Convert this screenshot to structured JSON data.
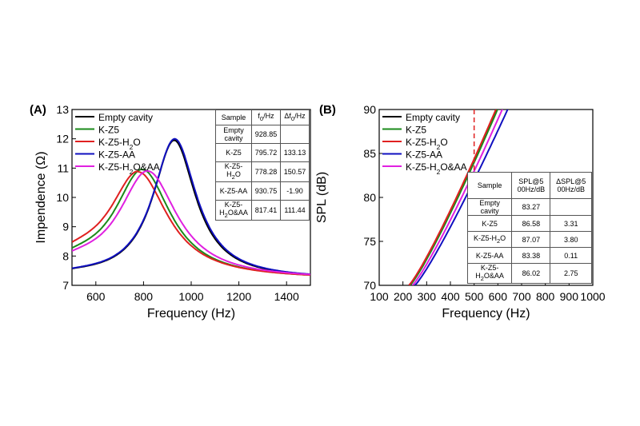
{
  "chart_data": [
    {
      "panel_label": "(A)",
      "type": "line",
      "xlabel": "Frequency (Hz)",
      "ylabel": "Impendence (Ω)",
      "xlim": [
        500,
        1500
      ],
      "ylim": [
        7,
        13
      ],
      "xticks": [
        600,
        800,
        1000,
        1200,
        1400
      ],
      "yticks": [
        7,
        8,
        9,
        10,
        11,
        12,
        13
      ],
      "legend_position": "top-left",
      "series": [
        {
          "name": "Empty cavity",
          "label_parts": [
            "Empty cavity"
          ],
          "color": "#000000",
          "f0": 928.85,
          "peak": 11.95,
          "baseline": 7.2,
          "gamma": 110,
          "ylow": 7.28
        },
        {
          "name": "K-Z5",
          "label_parts": [
            "K-Z5"
          ],
          "color": "#1a8a1a",
          "f0": 795.72,
          "peak": 10.95,
          "baseline": 7.2,
          "gamma": 145,
          "ylow": 7.55
        },
        {
          "name": "K-Z5-H2O",
          "label_parts": [
            "K-Z5-H",
            "2",
            "O"
          ],
          "color": "#e02020",
          "f0": 778.28,
          "peak": 10.87,
          "baseline": 7.2,
          "gamma": 150,
          "ylow": 7.65
        },
        {
          "name": "K-Z5-AA",
          "label_parts": [
            "K-Z5-AA"
          ],
          "color": "#1010c0",
          "f0": 930.75,
          "peak": 12.0,
          "baseline": 7.2,
          "gamma": 112,
          "ylow": 7.28
        },
        {
          "name": "K-Z5-H2O&AA",
          "label_parts": [
            "K-Z5-H",
            "2",
            "O&AA"
          ],
          "color": "#e020e0",
          "f0": 817.41,
          "peak": 10.9,
          "baseline": 7.2,
          "gamma": 150,
          "ylow": 7.5
        }
      ],
      "table": {
        "headers": [
          "Sample",
          "f0/Hz",
          "Δf0/Hz"
        ],
        "rows": [
          [
            "Empty cavity",
            "928.85",
            ""
          ],
          [
            "K-Z5",
            "795.72",
            "133.13"
          ],
          [
            "K-Z5-H2O",
            "778.28",
            "150.57"
          ],
          [
            "K-Z5-AA",
            "930.75",
            "-1.90"
          ],
          [
            "K-Z5-H2O&AA",
            "817.41",
            "111.44"
          ]
        ]
      }
    },
    {
      "panel_label": "(B)",
      "type": "line",
      "xlabel": "Frequency (Hz)",
      "ylabel": "SPL (dB)",
      "xlim": [
        100,
        1000
      ],
      "ylim": [
        70,
        90
      ],
      "xticks": [
        100,
        200,
        300,
        400,
        500,
        600,
        700,
        800,
        900,
        1000
      ],
      "yticks": [
        70,
        75,
        80,
        85,
        90
      ],
      "legend_position": "top-left",
      "marker_line": {
        "x": 500,
        "color": "#e02020",
        "style": "dashed"
      },
      "series": [
        {
          "name": "Empty cavity",
          "label_parts": [
            "Empty cavity"
          ],
          "color": "#000000",
          "x_start": 228,
          "x_end": 600
        },
        {
          "name": "K-Z5",
          "label_parts": [
            "K-Z5"
          ],
          "color": "#1a8a1a",
          "x_start": 230,
          "x_end": 605
        },
        {
          "name": "K-Z5-H2O",
          "label_parts": [
            "K-Z5-H",
            "2",
            "O"
          ],
          "color": "#e02020",
          "x_start": 225,
          "x_end": 598
        },
        {
          "name": "K-Z5-AA",
          "label_parts": [
            "K-Z5-AA"
          ],
          "color": "#1010c0",
          "x_start": 250,
          "x_end": 648
        },
        {
          "name": "K-Z5-H2O&AA",
          "label_parts": [
            "K-Z5-H",
            "2",
            "O&AA"
          ],
          "color": "#e020e0",
          "x_start": 240,
          "x_end": 625
        }
      ],
      "table": {
        "headers": [
          "Sample",
          "SPL@500Hz/dB",
          "ΔSPL@500Hz/dB"
        ],
        "rows": [
          [
            "Empty cavity",
            "83.27",
            ""
          ],
          [
            "K-Z5",
            "86.58",
            "3.31"
          ],
          [
            "K-Z5-H2O",
            "87.07",
            "3.80"
          ],
          [
            "K-Z5-AA",
            "83.38",
            "0.11"
          ],
          [
            "K-Z5-H2O&AA",
            "86.02",
            "2.75"
          ]
        ]
      }
    }
  ]
}
